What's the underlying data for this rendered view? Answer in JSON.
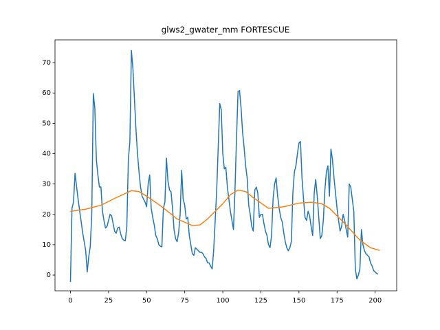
{
  "chart_data": {
    "type": "line",
    "title": "glws2_gwater_mm FORTESCUE",
    "xlim": [
      -10.15,
      214.15
    ],
    "ylim": [
      -5.2,
      77.5
    ],
    "xticks": [
      0,
      25,
      50,
      75,
      100,
      125,
      150,
      175,
      200
    ],
    "yticks": [
      0,
      10,
      20,
      30,
      40,
      50,
      60,
      70
    ],
    "series": [
      {
        "color": "#1f77b4",
        "x": [
          0,
          1,
          2,
          3,
          5,
          8,
          10,
          11,
          12,
          13,
          14,
          15,
          16,
          17,
          18,
          19,
          20,
          21,
          22,
          23,
          24,
          26,
          27,
          28,
          29,
          30,
          31,
          32,
          33,
          34,
          35,
          36,
          37,
          38,
          39,
          40,
          41,
          42,
          43,
          44,
          45,
          46,
          47,
          48,
          49,
          50,
          51,
          52,
          53,
          54,
          55,
          56,
          57,
          58,
          59,
          60,
          61,
          62,
          63,
          64,
          65,
          66,
          67,
          68,
          69,
          70,
          71,
          72,
          73,
          74,
          75,
          76,
          77,
          78,
          79,
          80,
          81,
          82,
          84,
          85,
          86,
          87,
          88,
          89,
          90,
          91,
          92,
          93,
          94,
          96,
          98,
          99,
          100,
          101,
          102,
          103,
          104,
          105,
          106,
          107,
          108,
          109,
          110,
          111,
          112,
          113,
          114,
          115,
          116,
          117,
          118,
          119,
          120,
          121,
          122,
          123,
          124,
          125,
          126,
          127,
          128,
          129,
          130,
          131,
          132,
          133,
          134,
          135,
          136,
          137,
          138,
          139,
          140,
          141,
          142,
          143,
          144,
          145,
          146,
          147,
          148,
          149,
          150,
          151,
          152,
          153,
          154,
          155,
          156,
          157,
          158,
          159,
          160,
          161,
          162,
          163,
          164,
          165,
          166,
          167,
          168,
          169,
          170,
          171,
          172,
          173,
          174,
          175,
          176,
          177,
          178,
          179,
          180,
          181,
          182,
          183,
          184,
          185,
          186,
          187,
          188,
          189,
          190,
          191,
          192,
          193,
          194,
          195,
          196,
          197,
          198,
          199,
          200,
          201,
          202
        ],
        "values": [
          -2.3,
          22,
          24,
          33.5,
          25,
          14,
          8,
          1,
          6,
          9.5,
          20,
          59.8,
          55,
          38,
          33,
          29,
          29,
          21,
          18,
          15.5,
          16,
          20,
          19.5,
          17,
          14.5,
          13.8,
          15.5,
          15.8,
          13.5,
          12,
          11.5,
          11.3,
          16,
          38,
          44,
          74,
          68,
          58,
          48,
          40,
          34,
          29,
          26,
          25,
          24,
          22.5,
          30,
          33,
          22,
          19,
          16.5,
          13,
          12,
          10,
          9.5,
          9.3,
          22,
          24,
          38.5,
          31,
          28,
          27.5,
          22,
          15,
          12,
          11,
          14,
          20,
          34.5,
          25,
          23,
          18.5,
          19,
          13,
          10,
          7,
          6.5,
          9,
          8,
          7.5,
          7.5,
          7,
          6,
          5.5,
          4,
          4,
          3,
          2,
          8,
          28,
          56.5,
          54.5,
          40,
          35,
          35.5,
          29,
          25,
          21,
          18,
          15,
          28,
          45,
          60.5,
          60.8,
          55,
          47,
          42,
          36,
          32,
          23,
          20,
          16,
          14.5,
          28,
          29,
          27,
          19,
          20,
          20,
          17,
          14.5,
          13,
          10,
          9,
          13,
          25,
          30,
          32,
          26,
          22,
          19,
          17.5,
          14,
          11,
          9,
          8,
          9,
          11,
          27,
          34,
          36,
          40,
          43.5,
          44,
          32,
          25,
          19,
          18,
          21,
          19.5,
          16,
          13,
          27,
          31.5,
          26,
          19,
          12,
          13,
          18,
          28,
          34,
          36,
          26,
          41.5,
          38,
          32,
          27,
          22,
          18,
          14.5,
          16,
          20,
          18,
          15,
          12.5,
          30,
          29,
          25,
          21,
          2,
          -1.3,
          0,
          2,
          15,
          10,
          8,
          7,
          6.5,
          6,
          4,
          3,
          1.5,
          1,
          0.5,
          0.3
        ]
      },
      {
        "color": "#ff7f0e",
        "x": [
          0,
          10,
          20,
          30,
          40,
          45,
          50,
          60,
          70,
          80,
          85,
          90,
          100,
          105,
          110,
          115,
          120,
          130,
          140,
          150,
          158,
          165,
          170,
          180,
          190,
          197,
          203
        ],
        "values": [
          21,
          21.7,
          23,
          25.5,
          27.8,
          27.5,
          26,
          22.5,
          18.5,
          16.3,
          16.5,
          18.5,
          23.5,
          26.5,
          28,
          27.5,
          25.5,
          22,
          22.5,
          23.7,
          24,
          23.5,
          22,
          17,
          11.5,
          9,
          8.1
        ]
      }
    ]
  }
}
